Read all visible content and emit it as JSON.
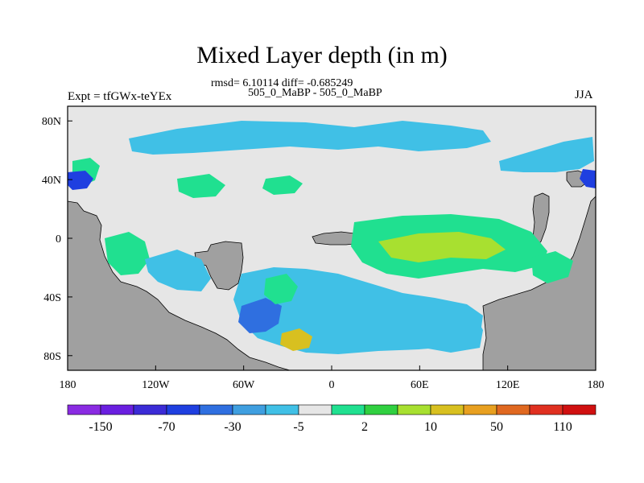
{
  "title": "Mixed Layer depth (in m)",
  "stats": "rmsd= 6.10114 diff= -0.685249",
  "case_line": "505_0_MaBP - 505_0_MaBP",
  "left_label": "Expt = tfGWx-teYEx",
  "right_label": "JJA",
  "colors": {
    "land": "#a0a0a0",
    "background_field": "#e6e6e6",
    "palette": [
      "#8a2be2",
      "#6a1fe0",
      "#3b2bd6",
      "#1f3fe0",
      "#2f6fe0",
      "#3f9fe0",
      "#40c0e6",
      "#e6e6e6",
      "#20e090",
      "#30d040",
      "#a8e030",
      "#d8c020",
      "#e8a020",
      "#e06820",
      "#e03020",
      "#d01010"
    ]
  },
  "map": {
    "projection": "cylindrical equidistant",
    "lon_range": [
      -180,
      180
    ],
    "lat_range": [
      -90,
      90
    ],
    "lon_ticks": [
      {
        "value": -180,
        "label": "180"
      },
      {
        "value": -120,
        "label": "120W"
      },
      {
        "value": -60,
        "label": "60W"
      },
      {
        "value": 0,
        "label": "0"
      },
      {
        "value": 60,
        "label": "60E"
      },
      {
        "value": 120,
        "label": "120E"
      },
      {
        "value": 180,
        "label": "180"
      }
    ],
    "lat_ticks": [
      {
        "value": 80,
        "label": "80N"
      },
      {
        "value": 40,
        "label": "40N"
      },
      {
        "value": 0,
        "label": "0"
      },
      {
        "value": -40,
        "label": "40S"
      },
      {
        "value": -80,
        "label": "80S"
      }
    ]
  },
  "colorbar": {
    "labels": [
      "-150",
      "-70",
      "-30",
      "-5",
      "2",
      "10",
      "50",
      "110"
    ]
  }
}
